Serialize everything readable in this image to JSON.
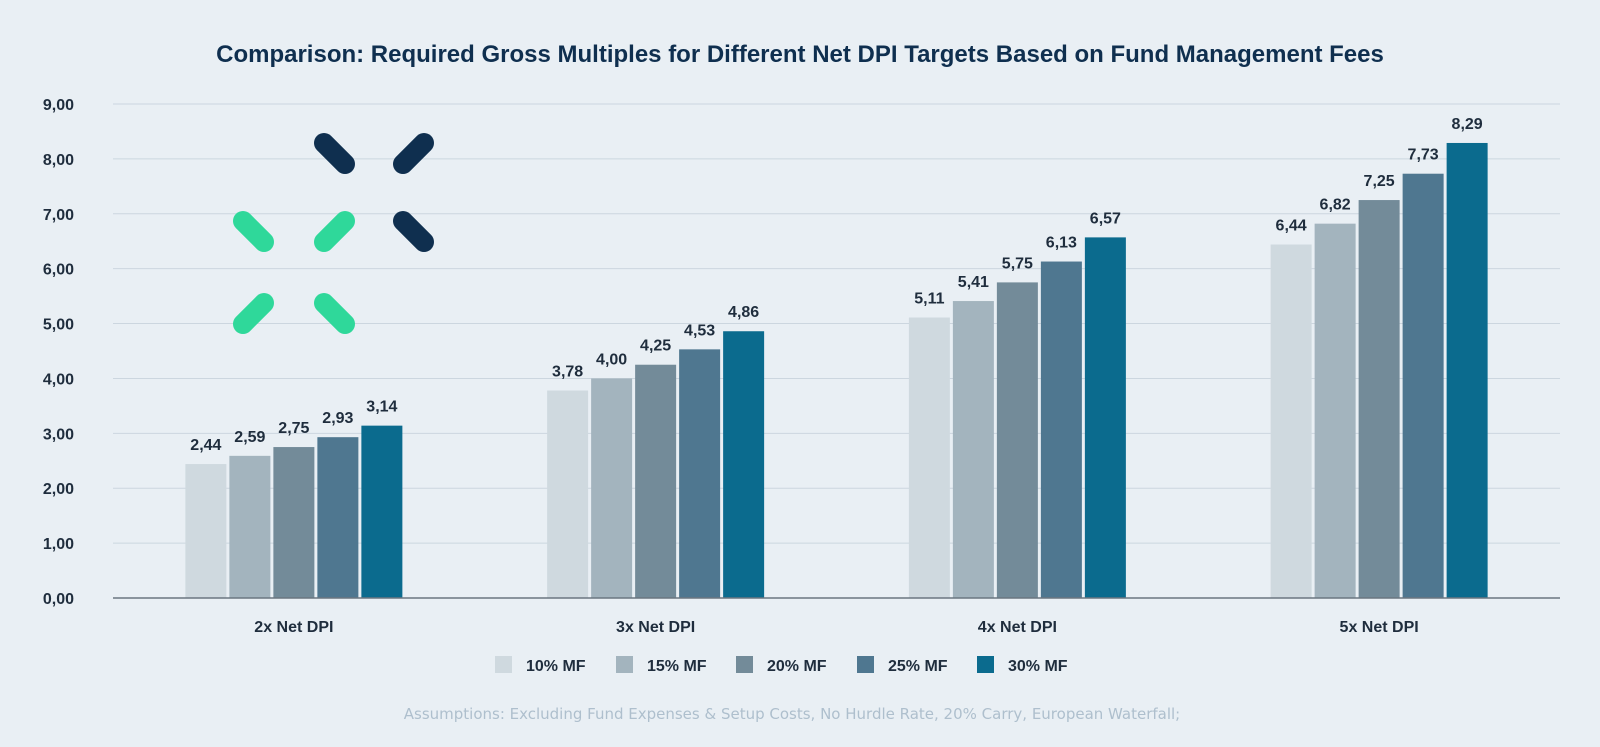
{
  "chart_data": {
    "type": "bar",
    "title": "Comparison: Required Gross Multiples for Different Net DPI Targets Based on Fund Management Fees",
    "categories": [
      "2x Net DPI",
      "3x Net DPI",
      "4x Net DPI",
      "5x Net DPI"
    ],
    "series": [
      {
        "name": "10% MF",
        "color": "#cfd9df",
        "values": [
          2.44,
          3.78,
          5.11,
          6.44
        ],
        "labels": [
          "2,44",
          "3,78",
          "5,11",
          "6,44"
        ]
      },
      {
        "name": "15% MF",
        "color": "#a3b4be",
        "values": [
          2.59,
          4.0,
          5.41,
          6.82
        ],
        "labels": [
          "2,59",
          "4,00",
          "5,41",
          "6,82"
        ]
      },
      {
        "name": "20% MF",
        "color": "#738b99",
        "values": [
          2.75,
          4.25,
          5.75,
          7.25
        ],
        "labels": [
          "2,75",
          "4,25",
          "5,75",
          "7,25"
        ]
      },
      {
        "name": "25% MF",
        "color": "#4f7790",
        "values": [
          2.93,
          4.53,
          6.13,
          7.73
        ],
        "labels": [
          "2,93",
          "4,53",
          "6,13",
          "7,73"
        ]
      },
      {
        "name": "30% MF",
        "color": "#0b6b8e",
        "values": [
          3.14,
          4.86,
          6.57,
          8.29
        ],
        "labels": [
          "3,14",
          "4,86",
          "6,57",
          "8,29"
        ]
      }
    ],
    "ylim": [
      0,
      9
    ],
    "yticks": [
      "0,00",
      "1,00",
      "2,00",
      "3,00",
      "4,00",
      "5,00",
      "6,00",
      "7,00",
      "8,00",
      "9,00"
    ],
    "xlabel": "",
    "ylabel": "",
    "grid": true,
    "legend_position": "bottom",
    "footnote": "Assumptions: Excluding Fund Expenses & Setup Costs, No Hurdle Rate, 20% Carry, European Waterfall;"
  },
  "logo": {
    "dark_color": "#0f2f4f",
    "accent_color": "#2fd89a"
  }
}
